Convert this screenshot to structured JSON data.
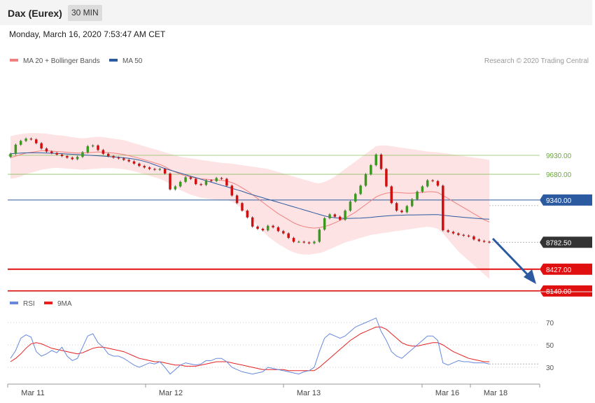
{
  "header": {
    "instrument": "Dax (Eurex)",
    "timeframe": "30 MIN"
  },
  "timestamp": "Monday, March 16, 2020 7:53:47 AM CET",
  "legend": {
    "items": [
      {
        "label": "MA 20 + Bollinger Bands",
        "color": "#f08080"
      },
      {
        "label": "MA 50",
        "color": "#2c5aa0"
      }
    ],
    "rsi_items": [
      {
        "label": "RSI",
        "color": "#6688dd"
      },
      {
        "label": "9MA",
        "color": "#e82020"
      }
    ]
  },
  "credit": "Research © 2020 Trading Central",
  "chart_data": {
    "type": "candlestick",
    "price_range": [
      7850,
      10150
    ],
    "x_labels": [
      "Mar 11",
      "Mar 12",
      "Mar 13",
      "Mar 16",
      "Mar 18"
    ],
    "levels": [
      {
        "value": 9930,
        "label": "9930.00",
        "kind": "resistance",
        "color": "#8cc063"
      },
      {
        "value": 9680,
        "label": "9680.00",
        "kind": "resistance",
        "color": "#8cc063"
      },
      {
        "value": 9340,
        "label": "9340.00",
        "kind": "pivot",
        "color": "#2c5aa0"
      },
      {
        "value": 8782.5,
        "label": "8782.50",
        "kind": "last",
        "color": "#333333"
      },
      {
        "value": 8427,
        "label": "8427.00",
        "kind": "support",
        "color": "#e01010"
      },
      {
        "value": 8140,
        "label": "8140.00",
        "kind": "support",
        "color": "#e01010"
      }
    ],
    "close": [
      9950,
      10070,
      10120,
      10150,
      10140,
      10090,
      10020,
      9980,
      9960,
      9940,
      9920,
      9900,
      9880,
      9910,
      9970,
      10050,
      10060,
      10000,
      9950,
      9920,
      9900,
      9890,
      9870,
      9850,
      9820,
      9790,
      9770,
      9750,
      9740,
      9750,
      9690,
      9480,
      9520,
      9580,
      9640,
      9620,
      9550,
      9540,
      9600,
      9590,
      9630,
      9620,
      9530,
      9400,
      9300,
      9200,
      9110,
      8990,
      8960,
      8940,
      9000,
      8980,
      8930,
      8900,
      8840,
      8790,
      8790,
      8780,
      8770,
      8790,
      8950,
      9100,
      9150,
      9120,
      9080,
      9200,
      9320,
      9420,
      9530,
      9680,
      9800,
      9940,
      9750,
      9520,
      9300,
      9200,
      9180,
      9260,
      9350,
      9450,
      9520,
      9600,
      9590,
      9530,
      8940,
      8920,
      8900,
      8880,
      8870,
      8860,
      8820,
      8800,
      8790,
      8782.5
    ],
    "ma20": [
      9900,
      9920,
      9940,
      9960,
      9970,
      9980,
      9990,
      9990,
      9985,
      9980,
      9975,
      9970,
      9965,
      9960,
      9960,
      9965,
      9970,
      9975,
      9970,
      9965,
      9960,
      9950,
      9940,
      9925,
      9910,
      9890,
      9870,
      9850,
      9830,
      9810,
      9780,
      9740,
      9710,
      9680,
      9660,
      9645,
      9630,
      9620,
      9615,
      9610,
      9605,
      9600,
      9590,
      9570,
      9540,
      9500,
      9460,
      9410,
      9360,
      9310,
      9260,
      9210,
      9160,
      9120,
      9080,
      9040,
      9010,
      8990,
      8975,
      8970,
      8975,
      8990,
      9010,
      9040,
      9070,
      9100,
      9140,
      9180,
      9230,
      9280,
      9330,
      9380,
      9410,
      9430,
      9440,
      9440,
      9435,
      9430,
      9430,
      9435,
      9440,
      9450,
      9450,
      9440,
      9400,
      9360,
      9320,
      9280,
      9240,
      9200,
      9160,
      9120,
      9080,
      9050
    ],
    "ma50": [
      9950,
      9955,
      9960,
      9962,
      9963,
      9963,
      9962,
      9960,
      9958,
      9955,
      9952,
      9948,
      9944,
      9940,
      9936,
      9932,
      9928,
      9924,
      9920,
      9915,
      9910,
      9905,
      9898,
      9890,
      9880,
      9868,
      9850,
      9830,
      9805,
      9780,
      9755,
      9735,
      9715,
      9695,
      9675,
      9655,
      9635,
      9615,
      9595,
      9575,
      9555,
      9535,
      9515,
      9495,
      9475,
      9455,
      9430,
      9410,
      9390,
      9370,
      9350,
      9330,
      9310,
      9290,
      9270,
      9250,
      9230,
      9210,
      9190,
      9170,
      9150,
      9130,
      9115,
      9105,
      9100,
      9098,
      9098,
      9100,
      9102,
      9105,
      9110,
      9118,
      9125,
      9130,
      9135,
      9138,
      9140,
      9142,
      9143,
      9144,
      9145,
      9146,
      9147,
      9148,
      9140,
      9132,
      9125,
      9118,
      9112,
      9106,
      9100,
      9095,
      9090,
      9088
    ],
    "bb_upper": [
      10180,
      10200,
      10210,
      10220,
      10225,
      10225,
      10220,
      10215,
      10205,
      10195,
      10190,
      10180,
      10170,
      10160,
      10155,
      10160,
      10170,
      10175,
      10170,
      10160,
      10150,
      10140,
      10130,
      10110,
      10090,
      10070,
      10050,
      10030,
      10010,
      9990,
      9970,
      9950,
      9930,
      9910,
      9900,
      9890,
      9880,
      9870,
      9860,
      9850,
      9840,
      9830,
      9825,
      9820,
      9810,
      9800,
      9790,
      9780,
      9770,
      9760,
      9750,
      9730,
      9710,
      9690,
      9670,
      9650,
      9630,
      9610,
      9590,
      9570,
      9560,
      9580,
      9610,
      9650,
      9700,
      9750,
      9800,
      9850,
      9900,
      9950,
      10000,
      10050,
      10060,
      10060,
      10050,
      10040,
      10030,
      10020,
      10010,
      10000,
      9990,
      9980,
      9975,
      9970,
      9960,
      9950,
      9940,
      9930,
      9920,
      9910,
      9900,
      9890,
      9880,
      9870
    ],
    "bb_lower": [
      9620,
      9630,
      9650,
      9680,
      9700,
      9720,
      9740,
      9750,
      9760,
      9765,
      9760,
      9755,
      9750,
      9745,
      9740,
      9745,
      9750,
      9755,
      9760,
      9760,
      9760,
      9755,
      9745,
      9735,
      9720,
      9700,
      9680,
      9660,
      9640,
      9620,
      9590,
      9550,
      9510,
      9470,
      9440,
      9410,
      9390,
      9370,
      9360,
      9350,
      9345,
      9345,
      9340,
      9320,
      9280,
      9220,
      9150,
      9080,
      9000,
      8930,
      8860,
      8810,
      8760,
      8720,
      8680,
      8650,
      8630,
      8620,
      8620,
      8630,
      8640,
      8660,
      8690,
      8720,
      8750,
      8780,
      8800,
      8820,
      8840,
      8860,
      8880,
      8890,
      8900,
      8910,
      8920,
      8930,
      8940,
      8950,
      8960,
      8970,
      8980,
      8985,
      8980,
      8960,
      8900,
      8820,
      8740,
      8660,
      8600,
      8540,
      8480,
      8420,
      8360,
      8300
    ],
    "rsi": {
      "ylim": [
        20,
        80
      ],
      "ticks": [
        70,
        50,
        30
      ],
      "rsi": [
        38,
        45,
        56,
        59,
        57,
        44,
        40,
        42,
        45,
        43,
        48,
        40,
        36,
        38,
        48,
        58,
        60,
        52,
        48,
        42,
        40,
        40,
        38,
        35,
        32,
        30,
        32,
        34,
        33,
        35,
        30,
        24,
        28,
        32,
        34,
        33,
        32,
        33,
        36,
        36,
        38,
        38,
        35,
        30,
        28,
        26,
        25,
        24,
        25,
        26,
        30,
        29,
        28,
        27,
        26,
        25,
        24,
        26,
        27,
        30,
        44,
        56,
        60,
        58,
        56,
        58,
        62,
        66,
        68,
        70,
        72,
        74,
        62,
        54,
        44,
        40,
        38,
        42,
        46,
        50,
        54,
        58,
        58,
        54,
        34,
        32,
        34,
        36,
        35,
        35,
        34,
        34,
        34,
        33
      ],
      "ma9": [
        35,
        38,
        42,
        47,
        51,
        52,
        51,
        49,
        47,
        46,
        45,
        44,
        43,
        42,
        43,
        45,
        47,
        48,
        48,
        47,
        46,
        45,
        44,
        42,
        40,
        38,
        37,
        36,
        35,
        35,
        34,
        33,
        32,
        32,
        31,
        31,
        31,
        32,
        33,
        34,
        35,
        35,
        35,
        34,
        33,
        32,
        31,
        30,
        29,
        28,
        28,
        28,
        28,
        28,
        27,
        27,
        27,
        27,
        27,
        27,
        30,
        34,
        38,
        42,
        46,
        50,
        54,
        57,
        60,
        62,
        64,
        66,
        66,
        64,
        60,
        56,
        52,
        50,
        49,
        49,
        50,
        51,
        52,
        52,
        50,
        47,
        44,
        42,
        40,
        38,
        37,
        36,
        35,
        35
      ]
    }
  }
}
